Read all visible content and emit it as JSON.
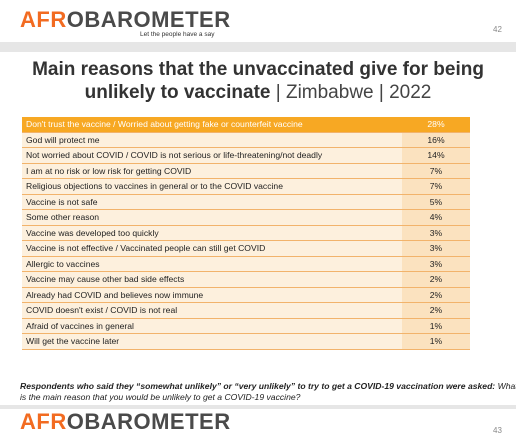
{
  "header": {
    "logo_accent": "AFR",
    "logo_rest": "OBAROMETER",
    "tagline": "Let the people have a say",
    "page": "42"
  },
  "title": {
    "main": "Main reasons that the unvaccinated give for being unlikely to vaccinate",
    "location": "| Zimbabwe | 2022"
  },
  "table": {
    "rows": [
      [
        "Don't trust the vaccine / Worried about getting fake or counterfeit vaccine",
        "28%"
      ],
      [
        "God will protect me",
        "16%"
      ],
      [
        "Not worried about COVID / COVID is not serious or life-threatening/not deadly",
        "14%"
      ],
      [
        "I am at no risk or low risk for getting COVID",
        "7%"
      ],
      [
        "Religious objections to vaccines in general or to the COVID vaccine",
        "7%"
      ],
      [
        "Vaccine is not safe",
        "5%"
      ],
      [
        "Some other reason",
        "4%"
      ],
      [
        "Vaccine was developed too quickly",
        "3%"
      ],
      [
        "Vaccine is not effective / Vaccinated people can still get COVID",
        "3%"
      ],
      [
        "Allergic to vaccines",
        "3%"
      ],
      [
        "Vaccine may cause other bad side effects",
        "2%"
      ],
      [
        "Already had COVID and believes now immune",
        "2%"
      ],
      [
        "COVID doesn't exist / COVID is not real",
        "2%"
      ],
      [
        "Afraid of vaccines in general",
        "1%"
      ],
      [
        "Will get the vaccine later",
        "1%"
      ]
    ]
  },
  "note": {
    "lead": "Respondents who said they “somewhat unlikely” or “very unlikely” to try to get a COVID-19 vaccination were asked:",
    "question": "What is the main reason that you would be unlikely to get a COVID-19 vaccine?"
  },
  "footer": {
    "logo_accent": "AFR",
    "logo_rest": "OBAROMETER",
    "page": "43"
  }
}
